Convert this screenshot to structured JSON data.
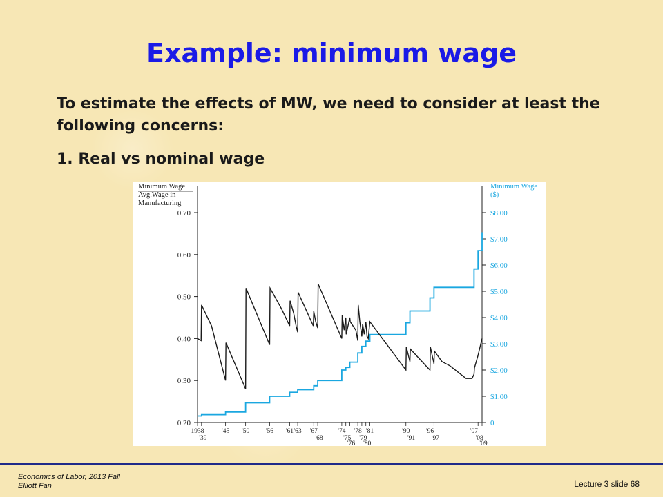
{
  "slide": {
    "title": "Example: minimum wage",
    "body": "To estimate the effects of MW, we need to consider at least the following concerns:",
    "point_1": "1. Real vs nominal wage"
  },
  "footer": {
    "course": "Economics of Labor, 2013 Fall",
    "author": "Elliott Fan",
    "slide_number": "Lecture 3 slide 68"
  },
  "chart_data": {
    "type": "line",
    "left_axis": {
      "title_lines": [
        "Minimum Wage",
        "Avg.Wage in",
        "Manufacturing"
      ],
      "ticks": [
        "0.20",
        "0.30",
        "0.40",
        "0.50",
        "0.60",
        "0.70"
      ],
      "ylim": [
        0.2,
        0.7
      ]
    },
    "right_axis": {
      "title_lines": [
        "Minimum Wage",
        "($)"
      ],
      "ticks": [
        "0",
        "$1.00",
        "$2.00",
        "$3.00",
        "$4.00",
        "$5.00",
        "$6.00",
        "$7.00",
        "$8.00"
      ],
      "ylim": [
        0,
        8
      ]
    },
    "x_ticks_upper": [
      "1938",
      "'45",
      "'50",
      "'56",
      "'61",
      "'63",
      "'67",
      "'74",
      "'78",
      "'81",
      "'90",
      "'96",
      "'07"
    ],
    "x_ticks_lower": [
      "'39",
      "'68",
      "'75",
      "'79",
      "'76",
      "'80",
      "'91",
      "'97",
      "'08",
      "'09"
    ],
    "xlim": [
      1938,
      2009
    ],
    "colors": {
      "ratio_series": "#1a1a1a",
      "nominal_series": "#1aa7e0"
    },
    "series": [
      {
        "axis": "left",
        "x": [
          1938,
          1938.9,
          1939,
          1941.5,
          1945,
          1945.1,
          1950,
          1950.1,
          1956,
          1956.1,
          1959,
          1961,
          1961.1,
          1962,
          1962.6,
          1963,
          1963.1,
          1965,
          1966.9,
          1967,
          1967.5,
          1968,
          1968.1,
          1974,
          1974.1,
          1974.6,
          1975,
          1975.1,
          1976,
          1976.1,
          1977.5,
          1978,
          1978.1,
          1978.5,
          1979,
          1979.2,
          1979.6,
          1980,
          1980.3,
          1980.6,
          1981,
          1990,
          1990.1,
          1991,
          1991.1,
          1995.5,
          1996,
          1996.1,
          1997,
          1997.1,
          1999,
          2001,
          2003,
          2005,
          2006.5,
          2007,
          2007.1,
          2008,
          2009
        ],
        "y": [
          0.4,
          0.395,
          0.48,
          0.43,
          0.3,
          0.39,
          0.28,
          0.52,
          0.385,
          0.52,
          0.47,
          0.43,
          0.49,
          0.46,
          0.43,
          0.415,
          0.51,
          0.47,
          0.43,
          0.465,
          0.44,
          0.425,
          0.53,
          0.4,
          0.455,
          0.42,
          0.45,
          0.41,
          0.45,
          0.44,
          0.42,
          0.395,
          0.48,
          0.44,
          0.405,
          0.435,
          0.41,
          0.44,
          0.405,
          0.4,
          0.44,
          0.325,
          0.38,
          0.345,
          0.375,
          0.33,
          0.325,
          0.38,
          0.34,
          0.37,
          0.345,
          0.335,
          0.32,
          0.305,
          0.305,
          0.315,
          0.33,
          0.36,
          0.4
        ]
      },
      {
        "axis": "right",
        "x": [
          1938,
          1939,
          1945,
          1950,
          1956,
          1961,
          1963,
          1967,
          1968,
          1974,
          1975,
          1976,
          1978,
          1979,
          1980,
          1981,
          1990,
          1991,
          1996,
          1997,
          2007,
          2008,
          2009
        ],
        "y": [
          0.25,
          0.3,
          0.4,
          0.75,
          1.0,
          1.15,
          1.25,
          1.4,
          1.6,
          2.0,
          2.1,
          2.3,
          2.65,
          2.9,
          3.1,
          3.35,
          3.8,
          4.25,
          4.75,
          5.15,
          5.85,
          6.55,
          7.25
        ]
      }
    ]
  }
}
